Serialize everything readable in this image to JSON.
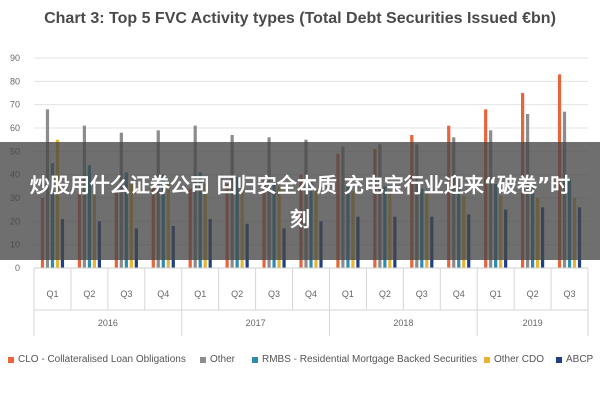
{
  "chart_data": {
    "type": "bar",
    "title": "Chart 3: Top 5 FVC Activity types (Total Debt Securities Issued €bn)",
    "ylim": [
      0,
      90
    ],
    "yticks": [
      0,
      10,
      20,
      30,
      40,
      50,
      60,
      70,
      80,
      90
    ],
    "grid": true,
    "legend_position": "bottom",
    "categories": [
      "Q1",
      "Q2",
      "Q3",
      "Q4",
      "Q1",
      "Q2",
      "Q3",
      "Q4",
      "Q1",
      "Q2",
      "Q3",
      "Q4",
      "Q1",
      "Q2",
      "Q3"
    ],
    "groups": [
      {
        "label": "2016",
        "span": 4
      },
      {
        "label": "2017",
        "span": 4
      },
      {
        "label": "2018",
        "span": 4
      },
      {
        "label": "2019",
        "span": 3
      }
    ],
    "series": [
      {
        "name": "CLO - Collateralised Loan Obligations",
        "color": "#e8643c",
        "values": [
          30,
          32,
          33,
          35,
          34,
          36,
          38,
          40,
          49,
          51,
          57,
          61,
          68,
          75,
          83
        ]
      },
      {
        "name": "Other",
        "color": "#8c8c8c",
        "values": [
          68,
          61,
          58,
          59,
          61,
          57,
          56,
          55,
          52,
          53,
          53,
          56,
          59,
          66,
          67
        ]
      },
      {
        "name": "RMBS - Residential Mortgage Backed Securities",
        "color": "#2b8cb0",
        "values": [
          45,
          44,
          41,
          40,
          41,
          39,
          38,
          37,
          36,
          35,
          34,
          35,
          36,
          37,
          38
        ]
      },
      {
        "name": "Other CDO",
        "color": "#e8b530",
        "values": [
          55,
          36,
          36,
          37,
          36,
          35,
          35,
          34,
          33,
          33,
          32,
          31,
          31,
          30,
          30
        ]
      },
      {
        "name": "ABCP",
        "color": "#1f3f86",
        "values": [
          21,
          20,
          17,
          18,
          21,
          19,
          17,
          20,
          22,
          22,
          22,
          23,
          25,
          26,
          26
        ]
      }
    ]
  },
  "overlay": {
    "text": "炒股用什么证券公司 回归安全本质 充电宝行业迎来“破卷”时刻"
  }
}
